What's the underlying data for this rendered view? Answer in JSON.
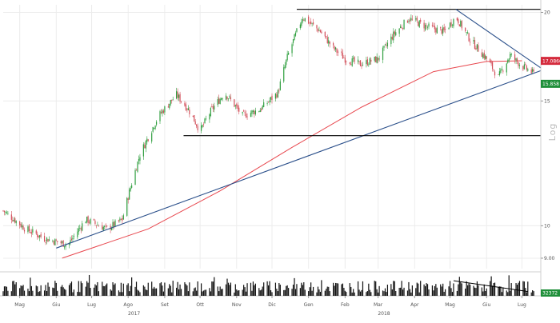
{
  "chart_data": {
    "type": "candlestick",
    "title": "",
    "scale_label": "Log",
    "y_scale": "log",
    "ylim": [
      8.7,
      20.5
    ],
    "y_ticks": [
      "9.00",
      "10",
      "15",
      "20"
    ],
    "x_ticks": [
      "Mag",
      "Giu",
      "Lug",
      "Ago",
      "Set",
      "Ott",
      "Nov",
      "Dic",
      "Gen",
      "Feb",
      "Mar",
      "Apr",
      "Mag",
      "Giu",
      "Lug"
    ],
    "year_labels": [
      "2017",
      "2018"
    ],
    "x_start": "2017-05-01",
    "x_end": "2018-07-31",
    "last_price": {
      "label": "15.858",
      "value": 15.858,
      "color": "#1f8f3a"
    },
    "moving_average_label": {
      "label": "17.0866",
      "value": 17.0866,
      "color": "#d42a3c"
    },
    "moving_average": [
      {
        "date": "2017-06-20",
        "value": 9.0
      },
      {
        "date": "2017-09-01",
        "value": 9.9
      },
      {
        "date": "2017-11-01",
        "value": 11.2
      },
      {
        "date": "2018-01-01",
        "value": 12.9
      },
      {
        "date": "2018-03-01",
        "value": 14.7
      },
      {
        "date": "2018-05-01",
        "value": 16.5
      },
      {
        "date": "2018-06-15",
        "value": 17.05
      },
      {
        "date": "2018-07-15",
        "value": 17.09
      }
    ],
    "trendlines": [
      {
        "name": "support",
        "color": "#2a4f8a",
        "from": {
          "date": "2017-06-15",
          "value": 9.3
        },
        "to": {
          "date": "2018-07-31",
          "value": 16.55
        }
      },
      {
        "name": "resistance-top",
        "color": "#000000",
        "from": {
          "date": "2018-01-05",
          "value": 20.2
        },
        "to": {
          "date": "2018-07-31",
          "value": 20.2
        }
      },
      {
        "name": "support-horizontal",
        "color": "#000000",
        "from": {
          "date": "2017-10-01",
          "value": 13.4
        },
        "to": {
          "date": "2018-07-31",
          "value": 13.4
        }
      },
      {
        "name": "descending-resistance",
        "color": "#2a4f8a",
        "from": {
          "date": "2018-05-20",
          "value": 20.2
        },
        "to": {
          "date": "2018-07-31",
          "value": 16.7
        }
      }
    ],
    "candles_keypoints": [
      {
        "date": "2017-05-01",
        "value": 10.5
      },
      {
        "date": "2017-05-20",
        "value": 9.9
      },
      {
        "date": "2017-06-05",
        "value": 9.6
      },
      {
        "date": "2017-06-25",
        "value": 9.4
      },
      {
        "date": "2017-07-10",
        "value": 10.2
      },
      {
        "date": "2017-07-28",
        "value": 9.9
      },
      {
        "date": "2017-08-10",
        "value": 10.2
      },
      {
        "date": "2017-08-25",
        "value": 12.6
      },
      {
        "date": "2017-09-10",
        "value": 14.3
      },
      {
        "date": "2017-09-25",
        "value": 15.3
      },
      {
        "date": "2017-10-05",
        "value": 14.6
      },
      {
        "date": "2017-10-15",
        "value": 13.6
      },
      {
        "date": "2017-10-25",
        "value": 14.6
      },
      {
        "date": "2017-11-05",
        "value": 15.4
      },
      {
        "date": "2017-11-20",
        "value": 14.3
      },
      {
        "date": "2017-12-05",
        "value": 14.6
      },
      {
        "date": "2017-12-20",
        "value": 15.4
      },
      {
        "date": "2017-12-28",
        "value": 17.3
      },
      {
        "date": "2018-01-10",
        "value": 19.7
      },
      {
        "date": "2018-01-25",
        "value": 18.8
      },
      {
        "date": "2018-02-05",
        "value": 17.8
      },
      {
        "date": "2018-02-15",
        "value": 17.2
      },
      {
        "date": "2018-02-28",
        "value": 16.9
      },
      {
        "date": "2018-03-15",
        "value": 17.2
      },
      {
        "date": "2018-03-28",
        "value": 18.6
      },
      {
        "date": "2018-04-10",
        "value": 19.6
      },
      {
        "date": "2018-04-25",
        "value": 19.1
      },
      {
        "date": "2018-05-10",
        "value": 18.8
      },
      {
        "date": "2018-05-20",
        "value": 19.7
      },
      {
        "date": "2018-06-01",
        "value": 18.3
      },
      {
        "date": "2018-06-15",
        "value": 17.2
      },
      {
        "date": "2018-06-25",
        "value": 16.2
      },
      {
        "date": "2018-07-05",
        "value": 17.4
      },
      {
        "date": "2018-07-15",
        "value": 16.8
      },
      {
        "date": "2018-07-25",
        "value": 16.4
      }
    ],
    "volume": {
      "last_label": "32372",
      "label_color": "#1f8f3a",
      "series_seed": 7,
      "trendline": {
        "color": "#000000",
        "from": {
          "date": "2018-05-18",
          "value": 0.7
        },
        "to": {
          "date": "2018-07-20",
          "value": 0.2
        }
      }
    },
    "colors": {
      "up": "#2e9e3e",
      "down": "#d24f5a",
      "grid": "#ececec",
      "ma": "#e8484f"
    },
    "grid": true
  }
}
